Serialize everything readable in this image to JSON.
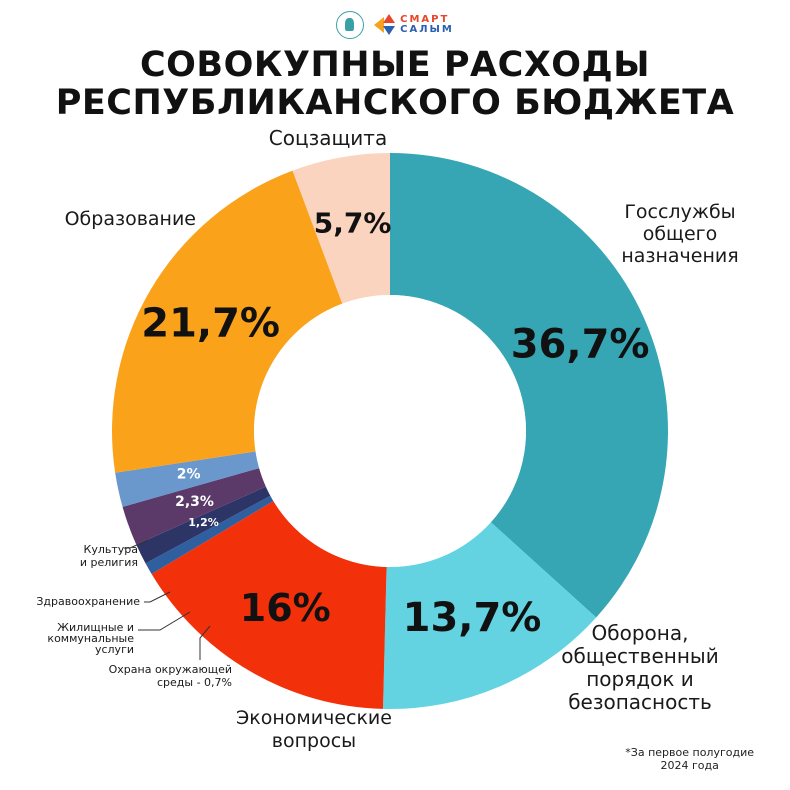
{
  "header": {
    "logo_left": "seal-logo",
    "logo_right_line1": "СМАРТ",
    "logo_right_line2": "САЛЫМ",
    "title_line1": "СОВОКУПНЫЕ РАСХОДЫ",
    "title_line2": "РЕСПУБЛИКАНСКОГО БЮДЖЕТА"
  },
  "footnote": {
    "line1": "*За первое полугодие",
    "line2": "2024 года"
  },
  "chart_data": {
    "type": "pie",
    "variant": "donut",
    "title": "СОВОКУПНЫЕ РАСХОДЫ РЕСПУБЛИКАНСКОГО БЮДЖЕТА",
    "unit": "%",
    "slices": [
      {
        "key": "gov",
        "category": "Госслужбы общего назначения",
        "value": 36.7,
        "value_label": "36,7%",
        "color": "#36a6b4"
      },
      {
        "key": "defense",
        "category": "Оборона, общественный порядок и безопасность",
        "value": 13.7,
        "value_label": "13,7%",
        "color": "#63d3e1"
      },
      {
        "key": "econ",
        "category": "Экономические вопросы",
        "value": 16,
        "value_label": "16%",
        "color": "#f2300a"
      },
      {
        "key": "env",
        "category": "Охрана окружающей среды - 0,7%",
        "value": 0.7,
        "value_label": "",
        "color": "#2f5f9e"
      },
      {
        "key": "housing",
        "category": "Жилищные и коммунальные услуги",
        "value": 1.2,
        "value_label": "1,2%",
        "color": "#2c3566"
      },
      {
        "key": "health",
        "category": "Здравоохранение",
        "value": 2.3,
        "value_label": "2,3%",
        "color": "#5b3a6a"
      },
      {
        "key": "culture",
        "category": "Культура и религия",
        "value": 2,
        "value_label": "2%",
        "color": "#6a97cc"
      },
      {
        "key": "edu",
        "category": "Образование",
        "value": 21.7,
        "value_label": "21,7%",
        "color": "#fba21b"
      },
      {
        "key": "social",
        "category": "Соцзащита",
        "value": 5.7,
        "value_label": "5,7%",
        "color": "#fbd4c0"
      }
    ],
    "category_labels": {
      "gov": [
        "Госслужбы",
        "общего",
        "назначения"
      ],
      "defense": [
        "Оборона,",
        "общественный",
        "порядок и",
        "безопасность"
      ],
      "econ": [
        "Экономические",
        "вопросы"
      ],
      "env": [
        "Охрана окружающей",
        "среды - 0,7%"
      ],
      "housing": [
        "Жилищные и",
        "коммунальные",
        "услуги"
      ],
      "health": [
        "Здравоохранение"
      ],
      "culture": [
        "Культура",
        "и религия"
      ],
      "edu": [
        "Образование"
      ],
      "social": [
        "Соцзащита"
      ]
    },
    "legend": "labels around the ring"
  }
}
